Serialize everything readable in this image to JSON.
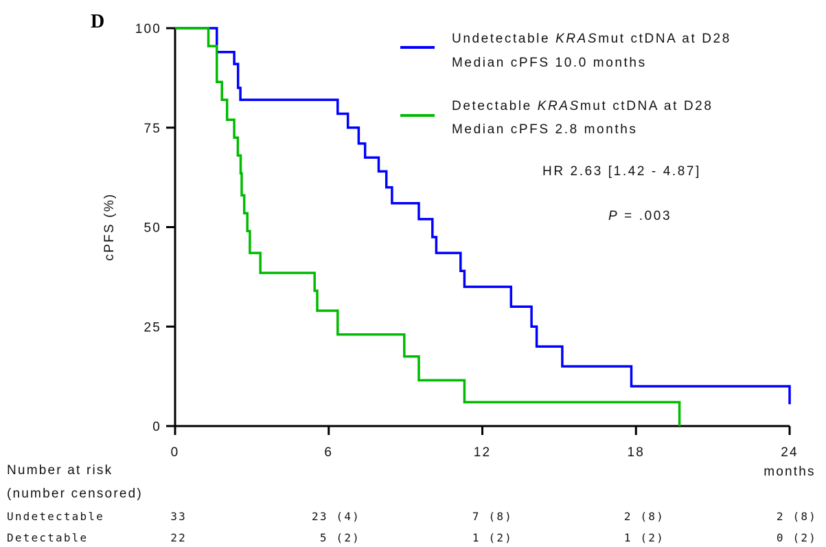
{
  "chart_data": {
    "type": "line",
    "step": true,
    "panel_label": "D",
    "ylabel": "cPFS (%)",
    "xlabel": "months",
    "xlim": [
      0,
      24
    ],
    "ylim": [
      0,
      100
    ],
    "xticks": [
      0,
      6,
      12,
      18,
      24
    ],
    "yticks": [
      0,
      25,
      50,
      75,
      100
    ],
    "grid": false,
    "legend_position": "top-right",
    "series": [
      {
        "legend_prefix": "Undetectable ",
        "legend_italic": "KRAS",
        "legend_suffix": "mut ctDNA at D28",
        "legend_line2": "Median cPFS 10.0 months",
        "color": "#0000ff",
        "x": [
          0,
          1.63,
          2.31,
          2.46,
          2.55,
          2.62,
          6.35,
          6.75,
          7.17,
          7.42,
          7.95,
          8.25,
          8.47,
          9.52,
          10.05,
          10.2,
          11.15,
          11.3,
          13.12,
          13.92,
          14.12,
          15.12,
          17.82,
          24.0,
          24.0
        ],
        "y": [
          100,
          94,
          91,
          85,
          82,
          82,
          78.5,
          75,
          71,
          67.5,
          64,
          60,
          56,
          52,
          47.5,
          43.5,
          39,
          35,
          30,
          25,
          20,
          15,
          10,
          10,
          5.5
        ]
      },
      {
        "legend_prefix": "Detectable ",
        "legend_italic": "KRAS",
        "legend_suffix": "mut ctDNA at D28",
        "legend_line2": "Median cPFS 2.8 months",
        "color": "#00bb00",
        "x": [
          0,
          1.3,
          1.63,
          1.83,
          2.03,
          2.31,
          2.45,
          2.56,
          2.6,
          2.7,
          2.82,
          2.92,
          3.1,
          3.33,
          5.45,
          5.55,
          6.35,
          8.95,
          9.52,
          11.3,
          19.7,
          19.7
        ],
        "y": [
          100,
          95.5,
          86.5,
          82,
          77,
          72.5,
          68,
          63.5,
          58,
          53.5,
          49,
          43.5,
          43.5,
          38.5,
          34,
          29,
          23,
          17.5,
          11.5,
          6,
          6,
          0
        ]
      }
    ],
    "annotations": {
      "hr": "HR 2.63 [1.42 - 4.87]",
      "p_label": "P",
      "p_value": " = .003"
    },
    "risk_table": {
      "title": "Number at risk",
      "subtitle": "(number censored)",
      "rows": [
        {
          "label": "Undetectable",
          "values": [
            "33",
            "23 (4)",
            "7 (8)",
            "2 (8)",
            "2 (8)"
          ]
        },
        {
          "label": "Detectable",
          "values": [
            "22",
            "5 (2)",
            "1 (2)",
            "1 (2)",
            "0 (2)"
          ]
        }
      ]
    }
  }
}
